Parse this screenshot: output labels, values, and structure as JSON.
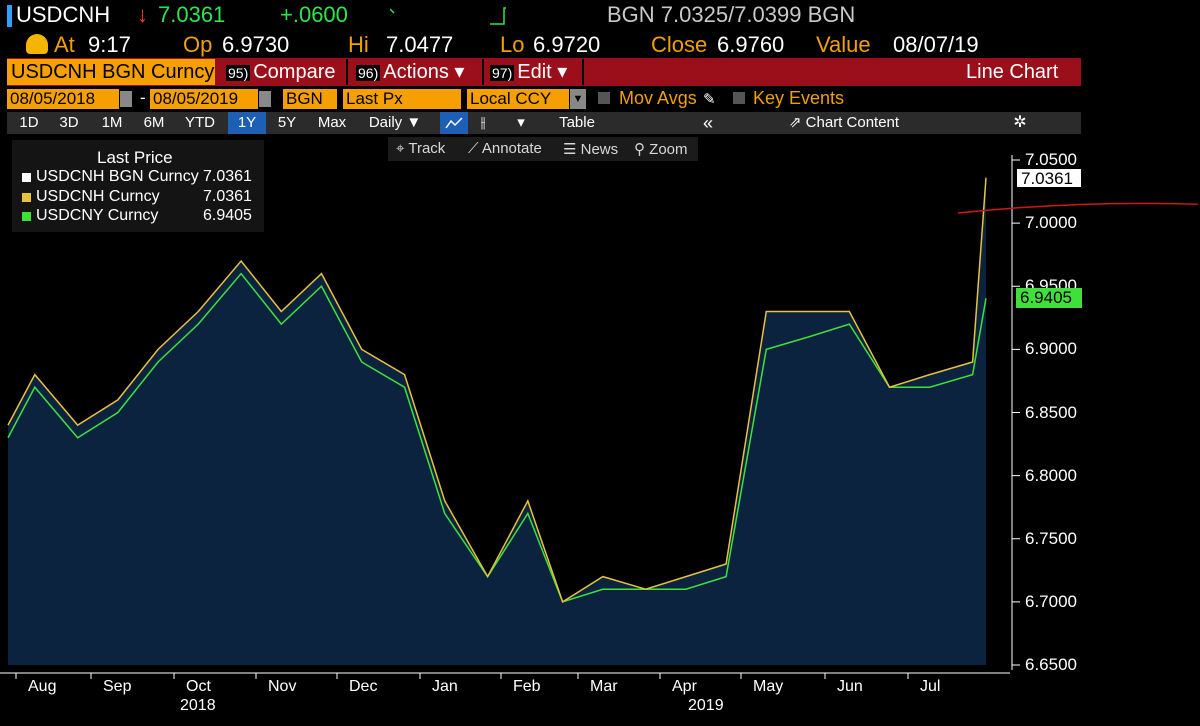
{
  "header": {
    "ticker": "USDCNH",
    "change_arrow": "↓",
    "last_price": "7.0361",
    "change": "+.0600",
    "bid_ask": "BGN 7.0325/7.0399 BGN",
    "at_label": "At",
    "at_value": "9:17",
    "open_label": "Op",
    "open_value": "6.9730",
    "high_label": "Hi",
    "high_value": "7.0477",
    "low_label": "Lo",
    "low_value": "6.9720",
    "close_label": "Close",
    "close_value": "6.9760",
    "value_label": "Value",
    "value_date": "08/07/19"
  },
  "menu": {
    "security": "USDCNH BGN Curncy",
    "compare_num": "95)",
    "compare": "Compare",
    "actions_num": "96)",
    "actions": "Actions ▾",
    "edit_num": "97)",
    "edit": "Edit ▾",
    "chart_type": "Line Chart"
  },
  "settings": {
    "start_date": "08/05/2018",
    "end_date": "08/05/2019",
    "source": "BGN",
    "field": "Last Px",
    "currency": "Local CCY",
    "mov_avgs": "Mov Avgs",
    "key_events": "Key Events"
  },
  "timebar": {
    "ranges": [
      "1D",
      "3D",
      "1M",
      "6M",
      "YTD",
      "1Y",
      "5Y",
      "Max"
    ],
    "active": "1Y",
    "frequency": "Daily ▼",
    "table": "Table",
    "chart_content": "Chart Content"
  },
  "chart_tools": {
    "track": "Track",
    "annotate": "Annotate",
    "news": "News",
    "zoom": "Zoom"
  },
  "legend": {
    "title": "Last Price",
    "items": [
      {
        "name": "USDCNH BGN Curncy",
        "value": "7.0361",
        "color": "#ffffff"
      },
      {
        "name": "USDCNH Curncy",
        "value": "7.0361",
        "color": "#e8c23a"
      },
      {
        "name": "USDCNY Curncy",
        "value": "6.9405",
        "color": "#3fe03a"
      }
    ]
  },
  "colors": {
    "accent_orange": "#f5a000",
    "menu_red": "#9b0f1a",
    "area_fill": "#0c2340",
    "cnh_line": "#e8c23a",
    "cny_line": "#3fe03a",
    "annotation": "#d01818"
  },
  "chart_data": {
    "type": "line",
    "ylim": [
      6.65,
      7.05
    ],
    "yticks": [
      "7.0500",
      "7.0000",
      "6.9500",
      "6.9000",
      "6.8500",
      "6.8000",
      "6.7500",
      "6.7000",
      "6.6500"
    ],
    "x_months": [
      "Aug",
      "Sep",
      "Oct",
      "Nov",
      "Dec",
      "Jan",
      "Feb",
      "Mar",
      "Apr",
      "May",
      "Jun",
      "Jul"
    ],
    "x_years": [
      "2018",
      "2019"
    ],
    "last_tags": [
      {
        "value": "7.0361",
        "y": 7.0361,
        "style": "white"
      },
      {
        "value": "6.9405",
        "y": 6.9405,
        "style": "green"
      }
    ],
    "x": [
      "2018-08-05",
      "2018-08-15",
      "2018-08-31",
      "2018-09-15",
      "2018-09-30",
      "2018-10-15",
      "2018-10-31",
      "2018-11-15",
      "2018-11-30",
      "2018-12-15",
      "2018-12-31",
      "2019-01-15",
      "2019-01-31",
      "2019-02-15",
      "2019-02-28",
      "2019-03-15",
      "2019-03-31",
      "2019-04-15",
      "2019-04-30",
      "2019-05-15",
      "2019-05-31",
      "2019-06-15",
      "2019-06-30",
      "2019-07-15",
      "2019-07-31",
      "2019-08-05"
    ],
    "series": [
      {
        "name": "USDCNH Curncy",
        "values": [
          6.84,
          6.88,
          6.84,
          6.86,
          6.9,
          6.93,
          6.97,
          6.93,
          6.96,
          6.9,
          6.88,
          6.78,
          6.72,
          6.78,
          6.7,
          6.72,
          6.71,
          6.72,
          6.73,
          6.93,
          6.93,
          6.93,
          6.87,
          6.88,
          6.89,
          7.036
        ]
      },
      {
        "name": "USDCNY Curncy",
        "values": [
          6.83,
          6.87,
          6.83,
          6.85,
          6.89,
          6.92,
          6.96,
          6.92,
          6.95,
          6.89,
          6.87,
          6.77,
          6.72,
          6.77,
          6.7,
          6.71,
          6.71,
          6.71,
          6.72,
          6.9,
          6.91,
          6.92,
          6.87,
          6.87,
          6.88,
          6.9405
        ]
      }
    ]
  }
}
